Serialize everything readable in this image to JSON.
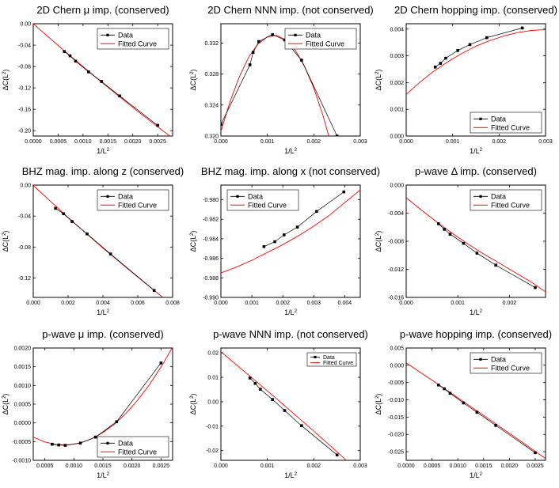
{
  "figure": {
    "label": "Nine fitted-curve panels"
  },
  "colors": {
    "data": "#000000",
    "fit": "#ff0000",
    "frame": "#000000"
  },
  "chart_data": [
    {
      "type": "line",
      "title": "2D Chern μ imp. (conserved)",
      "xlabel": "1/L²",
      "ylabel": "ΔC(L²)",
      "xlim": [
        0,
        0.0028
      ],
      "ylim": [
        -0.21,
        0
      ],
      "xticks": [
        0,
        0.0005,
        0.001,
        0.0015,
        0.002,
        0.0025
      ],
      "xticklabels": [
        "0.0000",
        "0.0005",
        "0.0010",
        "0.0015",
        "0.0020",
        "0.0025"
      ],
      "yticks": [
        0,
        -0.04,
        -0.08,
        -0.12,
        -0.16,
        -0.2
      ],
      "yticklabels": [
        "0.00",
        "-0.04",
        "-0.08",
        "-0.12",
        "-0.16",
        "-0.20"
      ],
      "legend": [
        "Data",
        "Fitted Curve"
      ],
      "legend_loc": "top-right",
      "legend_size": "normal",
      "series": [
        {
          "name": "Data",
          "x": [
            0.000625,
            0.000739,
            0.000851,
            0.001111,
            0.001372,
            0.001736,
            0.0025
          ],
          "y": [
            -0.052,
            -0.06,
            -0.07,
            -0.09,
            -0.108,
            -0.135,
            -0.19
          ]
        }
      ],
      "fit": {
        "x": [
          0,
          0.0007,
          0.0014,
          0.0021,
          0.0028
        ],
        "y": [
          0,
          -0.0568,
          -0.1114,
          -0.1638,
          -0.214
        ]
      }
    },
    {
      "type": "line",
      "title": "2D Chern NNN imp. (not conserved)",
      "xlabel": "1/L²",
      "ylabel": "ΔC(L²)",
      "xlim": [
        0,
        0.003
      ],
      "ylim": [
        0.32,
        0.3345
      ],
      "xticks": [
        0,
        0.001,
        0.002,
        0.003
      ],
      "xticklabels": [
        "0.000",
        "0.001",
        "0.002",
        "0.003"
      ],
      "yticks": [
        0.32,
        0.324,
        0.328,
        0.332
      ],
      "yticklabels": [
        "0.320",
        "0.324",
        "0.328",
        "0.332"
      ],
      "legend": [
        "Data",
        "Fitted Curve"
      ],
      "legend_loc": "top-right",
      "legend_size": "normal",
      "series": [
        {
          "name": "Data",
          "x": [
            0,
            0.000625,
            0.000694,
            0.000816,
            0.001111,
            0.001372,
            0.001736,
            0.0025
          ],
          "y": [
            0.3215,
            0.3292,
            0.3308,
            0.3322,
            0.3331,
            0.3324,
            0.3298,
            0.32
          ]
        }
      ],
      "fit": {
        "x": [
          0,
          0.0002,
          0.0004,
          0.0006,
          0.0008,
          0.001,
          0.0012,
          0.0014,
          0.0016,
          0.0018,
          0.002,
          0.0022,
          0.0024,
          0.0025
        ],
        "y": [
          0.3206,
          0.3245,
          0.3277,
          0.3302,
          0.3319,
          0.3328,
          0.333,
          0.3324,
          0.3311,
          0.329,
          0.3262,
          0.3226,
          0.3183,
          0.3158
        ]
      }
    },
    {
      "type": "line",
      "title": "2D Chern hopping imp. (conserved)",
      "xlabel": "1/L²",
      "ylabel": "ΔC(L²)",
      "xlim": [
        0,
        0.003
      ],
      "ylim": [
        0,
        0.0042
      ],
      "xticks": [
        0,
        0.001,
        0.002,
        0.003
      ],
      "xticklabels": [
        "0.000",
        "0.001",
        "0.002",
        "0.003"
      ],
      "yticks": [
        0,
        0.001,
        0.002,
        0.003,
        0.004
      ],
      "yticklabels": [
        "0.000",
        "0.001",
        "0.002",
        "0.003",
        "0.004"
      ],
      "legend": [
        "Data",
        "Fitted Curve"
      ],
      "legend_loc": "bottom-right",
      "legend_size": "normal",
      "series": [
        {
          "name": "Data",
          "x": [
            0.000625,
            0.000739,
            0.000851,
            0.001111,
            0.001372,
            0.001736,
            0.0025
          ],
          "y": [
            0.00258,
            0.00272,
            0.00291,
            0.0032,
            0.00342,
            0.00368,
            0.00404
          ]
        }
      ],
      "fit": {
        "x": [
          0,
          0.0003,
          0.0006,
          0.0009,
          0.0012,
          0.0015,
          0.0018,
          0.0021,
          0.0024,
          0.0027,
          0.003
        ],
        "y": [
          0.00156,
          0.00202,
          0.00243,
          0.00278,
          0.00309,
          0.00336,
          0.00357,
          0.00374,
          0.00387,
          0.00395,
          0.00398
        ]
      }
    },
    {
      "type": "line",
      "title": "BHZ mag. imp. along z (conserved)",
      "xlabel": "1/L²",
      "ylabel": "ΔC(L²)",
      "xlim": [
        0,
        0.008
      ],
      "ylim": [
        -0.145,
        0
      ],
      "xticks": [
        0,
        0.002,
        0.004,
        0.006,
        0.008
      ],
      "xticklabels": [
        "0.000",
        "0.002",
        "0.004",
        "0.006",
        "0.008"
      ],
      "yticks": [
        0,
        -0.04,
        -0.08,
        -0.12
      ],
      "yticklabels": [
        "0.00",
        "-0.04",
        "-0.08",
        "-0.12"
      ],
      "legend": [
        "Data",
        "Fitted Curve"
      ],
      "legend_loc": "top-right",
      "legend_size": "normal",
      "series": [
        {
          "name": "Data",
          "x": [
            0.00128,
            0.001736,
            0.00223,
            0.00309,
            0.00444,
            0.00694
          ],
          "y": [
            -0.03,
            -0.037,
            -0.047,
            -0.063,
            -0.089,
            -0.136
          ]
        }
      ],
      "fit": {
        "x": [
          0,
          0.002,
          0.004,
          0.006,
          0.0078
        ],
        "y": [
          -0.0005,
          -0.0418,
          -0.0814,
          -0.1188,
          -0.1516
        ]
      }
    },
    {
      "type": "line",
      "title": "BHZ mag. imp. along x (not conserved)",
      "xlabel": "1/L²",
      "ylabel": "ΔC(L²)",
      "xlim": [
        0,
        0.0045
      ],
      "ylim": [
        -0.99,
        -0.9785
      ],
      "xticks": [
        0,
        0.001,
        0.002,
        0.003,
        0.004
      ],
      "xticklabels": [
        "0.000",
        "0.001",
        "0.002",
        "0.003",
        "0.004"
      ],
      "yticks": [
        -0.98,
        -0.982,
        -0.984,
        -0.986,
        -0.988,
        -0.99
      ],
      "yticklabels": [
        "-0.980",
        "-0.982",
        "-0.984",
        "-0.986",
        "-0.988",
        "-0.990"
      ],
      "legend": [
        "Data",
        "Fitted Curve"
      ],
      "legend_loc": "top-left",
      "legend_size": "normal",
      "series": [
        {
          "name": "Data",
          "x": [
            0.00139,
            0.00174,
            0.00204,
            0.00247,
            0.00309,
            0.00397
          ],
          "y": [
            -0.9848,
            -0.9843,
            -0.9836,
            -0.9828,
            -0.9812,
            -0.9792
          ]
        }
      ],
      "fit": {
        "x": [
          0,
          0.0005,
          0.001,
          0.0015,
          0.002,
          0.0025,
          0.003,
          0.0035,
          0.004,
          0.0045
        ],
        "y": [
          -0.9875,
          -0.9869,
          -0.9862,
          -0.9854,
          -0.9846,
          -0.9837,
          -0.9827,
          -0.9816,
          -0.9803,
          -0.979
        ]
      }
    },
    {
      "type": "line",
      "title": "p-wave Δ imp. (conserved)",
      "xlabel": "1/L²",
      "ylabel": "ΔC(L²)",
      "xlim": [
        0,
        0.0027
      ],
      "ylim": [
        -0.016,
        0
      ],
      "xticks": [
        0,
        0.001,
        0.002
      ],
      "xticklabels": [
        "0.000",
        "0.001",
        "0.002"
      ],
      "yticks": [
        0,
        -0.004,
        -0.008,
        -0.012,
        -0.016
      ],
      "yticklabels": [
        "0.000",
        "-0.004",
        "-0.008",
        "-0.012",
        "-0.016"
      ],
      "legend": [
        "Data",
        "Fitted Curve"
      ],
      "legend_loc": "top-right",
      "legend_size": "normal",
      "series": [
        {
          "name": "Data",
          "x": [
            0.000625,
            0.000739,
            0.000851,
            0.001111,
            0.001372,
            0.001736,
            0.0025
          ],
          "y": [
            -0.0055,
            -0.0063,
            -0.007,
            -0.0083,
            -0.0097,
            -0.0114,
            -0.0146
          ]
        }
      ],
      "fit": {
        "x": [
          0,
          0.0003,
          0.0006,
          0.0009,
          0.0012,
          0.0015,
          0.0018,
          0.0021,
          0.0024,
          0.0027
        ],
        "y": [
          -0.0018,
          -0.0036,
          -0.0053,
          -0.0069,
          -0.0084,
          -0.0098,
          -0.0111,
          -0.0124,
          -0.0137,
          -0.0152
        ]
      }
    },
    {
      "type": "line",
      "title": "p-wave μ imp. (conserved)",
      "xlabel": "1/L²",
      "ylabel": "ΔC(L²)",
      "xlim": [
        0.0003,
        0.0027
      ],
      "ylim": [
        -0.001,
        0.002
      ],
      "xticks": [
        0.0005,
        0.001,
        0.0015,
        0.002,
        0.0025
      ],
      "xticklabels": [
        "0.0005",
        "0.0010",
        "0.0015",
        "0.0020",
        "0.0025"
      ],
      "yticks": [
        -0.001,
        -0.0005,
        0,
        0.0005,
        0.001,
        0.0015,
        0.002
      ],
      "yticklabels": [
        "-0.0010",
        "-0.0005",
        "0.0000",
        "0.0005",
        "0.0010",
        "0.0015",
        "0.0020"
      ],
      "legend": [
        "Data",
        "Fitted Curve"
      ],
      "legend_loc": "bottom-right",
      "legend_size": "normal",
      "series": [
        {
          "name": "Data",
          "x": [
            0.000625,
            0.000739,
            0.000851,
            0.001111,
            0.001372,
            0.001736,
            0.0025
          ],
          "y": [
            -0.00057,
            -0.00059,
            -0.0006,
            -0.00054,
            -0.00038,
            3e-05,
            0.0016
          ]
        }
      ],
      "fit": {
        "x": [
          0.0003,
          0.0005,
          0.0007,
          0.0009,
          0.0011,
          0.0013,
          0.0015,
          0.0017,
          0.0019,
          0.0021,
          0.0023,
          0.0025,
          0.0027
        ],
        "y": [
          -0.00038,
          -0.00051,
          -0.00058,
          -0.00059,
          -0.00054,
          -0.00043,
          -0.00026,
          -3e-05,
          0.00026,
          0.00061,
          0.00102,
          0.00149,
          0.00202
        ]
      }
    },
    {
      "type": "line",
      "title": "p-wave NNN imp. (not conserved)",
      "xlabel": "1/L²",
      "ylabel": "ΔC(L²)",
      "xlim": [
        0,
        0.003
      ],
      "ylim": [
        -0.024,
        0.022
      ],
      "xticks": [
        0,
        0.001,
        0.002,
        0.003
      ],
      "xticklabels": [
        "0.000",
        "0.001",
        "0.002",
        "0.003"
      ],
      "yticks": [
        0.02,
        0.01,
        0,
        -0.01,
        -0.02
      ],
      "yticklabels": [
        "0.02",
        "0.01",
        "0.00",
        "-0.01",
        "-0.02"
      ],
      "legend": [
        "Data",
        "Fitted Curve"
      ],
      "legend_loc": "top-right",
      "legend_size": "small",
      "series": [
        {
          "name": "Data",
          "x": [
            0.000625,
            0.000739,
            0.000851,
            0.001111,
            0.001372,
            0.001736,
            0.0025
          ],
          "y": [
            0.0097,
            0.0075,
            0.0051,
            0.0009,
            -0.0036,
            -0.0098,
            -0.0218
          ]
        }
      ],
      "fit": {
        "x": [
          0,
          0.0006,
          0.0012,
          0.0018,
          0.0024,
          0.003
        ],
        "y": [
          0.0205,
          0.0109,
          0.0012,
          -0.0087,
          -0.0188,
          -0.0292
        ]
      }
    },
    {
      "type": "line",
      "title": "p-wave hopping imp. (conserved)",
      "xlabel": "1/L²",
      "ylabel": "ΔC(L²)",
      "xlim": [
        0,
        0.0027
      ],
      "ylim": [
        -0.0275,
        0.005
      ],
      "xticks": [
        0,
        0.0005,
        0.001,
        0.0015,
        0.002,
        0.0025
      ],
      "xticklabels": [
        "0.0000",
        "0.0005",
        "0.0010",
        "0.0015",
        "0.0020",
        "0.0025"
      ],
      "yticks": [
        0.005,
        0,
        -0.005,
        -0.01,
        -0.015,
        -0.02,
        -0.025
      ],
      "yticklabels": [
        "0.005",
        "0.000",
        "-0.005",
        "-0.010",
        "-0.015",
        "-0.020",
        "-0.025"
      ],
      "legend": [
        "Data",
        "Fitted Curve"
      ],
      "legend_loc": "top-right",
      "legend_size": "normal",
      "series": [
        {
          "name": "Data",
          "x": [
            0.000625,
            0.000739,
            0.000851,
            0.001111,
            0.001372,
            0.001736,
            0.0025
          ],
          "y": [
            -0.0057,
            -0.0068,
            -0.0081,
            -0.0109,
            -0.0136,
            -0.0174,
            -0.0253
          ]
        }
      ],
      "fit": {
        "x": [
          0,
          0.0005,
          0.001,
          0.0015,
          0.002,
          0.0025,
          0.0027
        ],
        "y": [
          0.0007,
          -0.0043,
          -0.0094,
          -0.0145,
          -0.0197,
          -0.0249,
          -0.027
        ]
      }
    }
  ]
}
